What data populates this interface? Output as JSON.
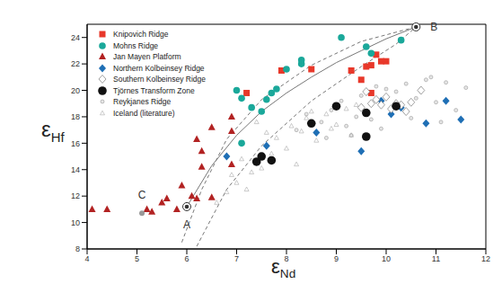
{
  "chart_data": {
    "type": "scatter",
    "xlabel": "εNd",
    "ylabel": "εHf",
    "xlim": [
      4,
      12
    ],
    "xticks": [
      4,
      5,
      6,
      7,
      8,
      9,
      10,
      11,
      12
    ],
    "ylim": [
      8,
      25
    ],
    "yticks": [
      8,
      10,
      12,
      14,
      16,
      18,
      20,
      22,
      24
    ],
    "grid": false,
    "legend": "upper left",
    "series": [
      {
        "name": "Knipovich Ridge",
        "color": "#e8382a",
        "marker": "square",
        "x": [
          7.2,
          7.9,
          8.5,
          9.3,
          9.5,
          9.6,
          9.7,
          9.8,
          9.9,
          10.0,
          9.7
        ],
        "y": [
          19.8,
          21.5,
          21.6,
          21.5,
          20.8,
          21.8,
          21.9,
          22.7,
          22.2,
          22.2,
          19.8
        ]
      },
      {
        "name": "Mohns Ridge",
        "color": "#1aa89a",
        "marker": "circle",
        "x": [
          7.0,
          7.1,
          7.3,
          7.5,
          7.6,
          7.7,
          7.8,
          8.0,
          8.3,
          8.3,
          9.1,
          9.6,
          9.7,
          10.3,
          7.1
        ],
        "y": [
          20.0,
          19.4,
          18.7,
          18.4,
          19.3,
          19.8,
          20.1,
          21.6,
          22.0,
          22.3,
          24.0,
          23.3,
          22.8,
          23.8,
          16.0
        ]
      },
      {
        "name": "Jan Mayen Platform",
        "color": "#b22222",
        "marker": "triangle",
        "x": [
          4.1,
          4.4,
          5.2,
          5.3,
          5.5,
          5.6,
          5.8,
          5.9,
          6.1,
          6.2,
          6.3,
          6.3,
          6.5,
          6.5,
          6.9,
          6.9,
          6.9,
          6.2
        ],
        "y": [
          11.0,
          11.0,
          11.0,
          10.8,
          11.5,
          11.8,
          11.0,
          12.8,
          12.0,
          11.8,
          14.2,
          15.4,
          11.9,
          17.2,
          16.9,
          14.4,
          18.0,
          16.3
        ]
      },
      {
        "name": "Northern Kolbeinsey Ridge",
        "color": "#1f6fb5",
        "marker": "diamond",
        "x": [
          6.8,
          7.6,
          8.6,
          9.5,
          9.9,
          10.1,
          10.3,
          10.8,
          11.2,
          11.5
        ],
        "y": [
          15.0,
          15.8,
          16.8,
          15.4,
          19.2,
          18.2,
          18.7,
          17.5,
          19.2,
          17.8
        ]
      },
      {
        "name": "Southern Kolbeinsey Ridge",
        "color": "#888888",
        "marker": "open_diamond",
        "x": [
          9.5,
          9.7,
          9.8,
          9.9,
          10.0,
          10.1,
          10.2,
          10.3,
          10.4,
          10.5,
          9.6,
          10.7
        ],
        "y": [
          18.7,
          19.0,
          19.3,
          18.9,
          19.5,
          18.6,
          19.0,
          18.9,
          18.4,
          19.1,
          19.9,
          20.0
        ]
      },
      {
        "name": "Tjörnes Transform Zone",
        "color": "#111111",
        "marker": "large_circle",
        "x": [
          7.4,
          7.5,
          7.7,
          8.5,
          9.0,
          9.6,
          9.6,
          10.2
        ],
        "y": [
          14.6,
          15.0,
          14.7,
          17.5,
          18.8,
          16.5,
          18.3,
          18.8
        ]
      },
      {
        "name": "Reykjanes Ridge",
        "color": "#999999",
        "marker": "small_circle",
        "x": [
          8.2,
          8.4,
          8.7,
          8.9,
          9.1,
          9.2,
          9.4,
          9.5,
          9.7,
          9.8,
          10.0,
          10.2,
          10.4,
          10.6,
          10.8,
          11.0,
          11.2,
          11.4,
          11.6,
          9.3,
          8.8,
          10.9,
          11.1,
          9.9,
          10.5
        ],
        "y": [
          17.0,
          18.2,
          17.6,
          18.5,
          19.2,
          17.3,
          18.0,
          19.6,
          17.8,
          20.3,
          20.1,
          19.9,
          20.5,
          19.4,
          20.8,
          19.1,
          20.6,
          18.5,
          20.2,
          16.6,
          16.4,
          21.0,
          17.6,
          17.1,
          17.9
        ]
      },
      {
        "name": "Iceland (literature)",
        "color": "#aaaaaa",
        "marker": "open_triangle",
        "x": [
          6.6,
          6.8,
          7.0,
          7.2,
          7.3,
          7.5,
          7.7,
          7.8,
          8.0,
          8.1,
          8.3,
          8.4,
          8.6,
          8.8,
          9.0,
          9.2,
          9.4,
          7.1,
          7.6,
          8.2,
          8.9,
          6.9,
          7.4,
          8.5,
          9.3
        ],
        "y": [
          11.5,
          12.3,
          13.0,
          12.5,
          13.8,
          14.1,
          15.2,
          16.4,
          15.6,
          17.3,
          16.9,
          17.9,
          16.2,
          18.2,
          17.4,
          18.6,
          18.9,
          14.8,
          16.8,
          14.4,
          17.1,
          13.6,
          17.6,
          18.4,
          16.6
        ]
      }
    ],
    "curves": [
      {
        "line_style": "solid",
        "x": [
          6.0,
          6.5,
          7.0,
          7.5,
          8.0,
          8.5,
          9.0,
          9.5,
          10.0,
          10.6
        ],
        "y": [
          11.2,
          14.3,
          16.6,
          18.4,
          19.8,
          21.0,
          22.1,
          23.0,
          23.9,
          24.8
        ]
      },
      {
        "line_style": "dashed",
        "x": [
          5.9,
          6.3,
          6.8,
          7.5,
          8.5,
          9.5,
          10.6
        ],
        "y": [
          8.5,
          12.5,
          16.3,
          19.3,
          21.9,
          23.7,
          24.8
        ]
      },
      {
        "line_style": "dashed",
        "x": [
          6.2,
          6.8,
          7.5,
          8.5,
          9.5,
          10.2,
          10.6
        ],
        "y": [
          8.2,
          12.5,
          15.8,
          19.2,
          21.8,
          23.5,
          24.8
        ]
      }
    ],
    "annotations": [
      {
        "text": "A",
        "x": 6.0,
        "y": 11.2,
        "marker": "ringed"
      },
      {
        "text": "B",
        "x": 10.6,
        "y": 24.8,
        "marker": "ringed"
      },
      {
        "text": "C",
        "x": 5.1,
        "y": 10.7,
        "marker": "circle"
      }
    ]
  }
}
